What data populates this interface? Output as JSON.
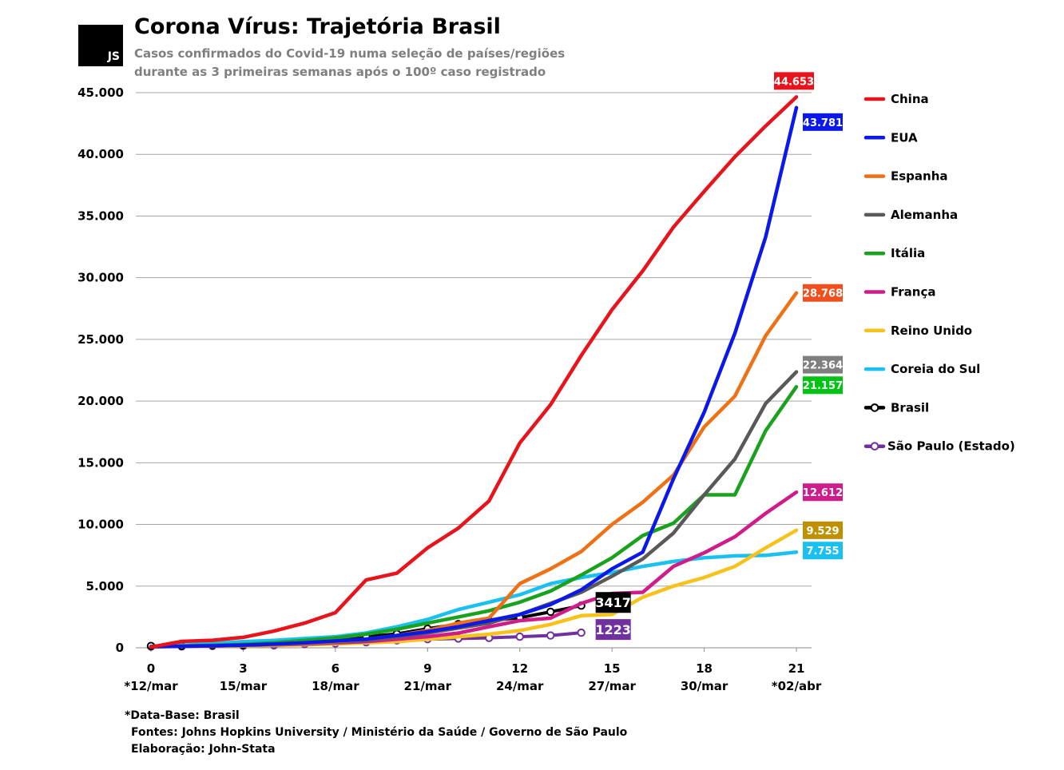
{
  "header": {
    "logo_text": "JS",
    "title": "Corona Vírus: Trajetória Brasil",
    "subtitle": "Casos confirmados do Covid-19 numa seleção de países/regiões durante as 3 primeiras semanas após o 100º caso registrado"
  },
  "footer": {
    "line1": "*Data-Base: Brasil",
    "line2": "Fontes: Johns Hopkins University / Ministério da Saúde / Governo de São Paulo",
    "line3": "Elaboração: John-Stata"
  },
  "chart_data": {
    "type": "line",
    "title": "Corona Vírus: Trajetória Brasil",
    "xlabel": "",
    "ylabel": "",
    "xlim": [
      0,
      21
    ],
    "ylim": [
      0,
      45000
    ],
    "grid": "horizontal",
    "legend_position": "right",
    "x_ticks": [
      {
        "x": 0,
        "day": "0",
        "date": "*12/mar"
      },
      {
        "x": 3,
        "day": "3",
        "date": "15/mar"
      },
      {
        "x": 6,
        "day": "6",
        "date": "18/mar"
      },
      {
        "x": 9,
        "day": "9",
        "date": "21/mar"
      },
      {
        "x": 12,
        "day": "12",
        "date": "24/mar"
      },
      {
        "x": 15,
        "day": "15",
        "date": "27/mar"
      },
      {
        "x": 18,
        "day": "18",
        "date": "30/mar"
      },
      {
        "x": 21,
        "day": "21",
        "date": "*02/abr"
      }
    ],
    "y_ticks": [
      {
        "value": 0,
        "label": "0"
      },
      {
        "value": 5000,
        "label": "5.000"
      },
      {
        "value": 10000,
        "label": "10.000"
      },
      {
        "value": 15000,
        "label": "15.000"
      },
      {
        "value": 20000,
        "label": "20.000"
      },
      {
        "value": 25000,
        "label": "25.000"
      },
      {
        "value": 30000,
        "label": "30.000"
      },
      {
        "value": 35000,
        "label": "35.000"
      },
      {
        "value": 40000,
        "label": "40.000"
      },
      {
        "value": 45000,
        "label": "45.000"
      }
    ],
    "series": [
      {
        "name": "China",
        "color": "#e8141c",
        "marker": "none",
        "end_label": "44.653",
        "label_color": "#e8141c",
        "values": [
          60,
          520,
          610,
          850,
          1350,
          2000,
          2850,
          5500,
          6050,
          8100,
          9700,
          11900,
          16600,
          19700,
          23700,
          27400,
          30550,
          34100,
          37000,
          39800,
          42300,
          44653
        ]
      },
      {
        "name": "EUA",
        "color": "#0a19ea",
        "marker": "none",
        "end_label": "43.781",
        "label_color": "#0a19ea",
        "values": [
          100,
          120,
          160,
          220,
          300,
          400,
          550,
          700,
          1000,
          1300,
          1700,
          2200,
          2700,
          3500,
          4700,
          6400,
          7750,
          13700,
          19100,
          25500,
          33300,
          43781
        ]
      },
      {
        "name": "Espanha",
        "color": "#ef7116",
        "marker": "none",
        "end_label": "28.768",
        "label_color": "#f24f1e",
        "values": [
          100,
          130,
          160,
          200,
          260,
          350,
          500,
          700,
          1000,
          1400,
          2000,
          2400,
          5200,
          6400,
          7800,
          10000,
          11800,
          14000,
          17900,
          20400,
          25300,
          28768
        ]
      },
      {
        "name": "Alemanha",
        "color": "#595959",
        "marker": "none",
        "end_label": "22.364",
        "label_color": "#7f7f7f",
        "values": [
          100,
          120,
          160,
          200,
          250,
          330,
          450,
          600,
          900,
          1200,
          1600,
          2000,
          2700,
          3600,
          4500,
          5800,
          7200,
          9300,
          12400,
          15300,
          19800,
          22364
        ]
      },
      {
        "name": "Itália",
        "color": "#1aa21f",
        "marker": "none",
        "end_label": "21.157",
        "label_color": "#00c316",
        "values": [
          100,
          150,
          200,
          280,
          400,
          600,
          800,
          1100,
          1500,
          2000,
          2500,
          3000,
          3700,
          4600,
          5900,
          7300,
          9100,
          10100,
          12400,
          12400,
          17600,
          21157
        ]
      },
      {
        "name": "França",
        "color": "#d01c8b",
        "marker": "none",
        "end_label": "12.612",
        "label_color": "#d01c8b",
        "values": [
          100,
          120,
          150,
          200,
          250,
          300,
          400,
          500,
          700,
          900,
          1200,
          1700,
          2200,
          2400,
          3600,
          4400,
          4500,
          6600,
          7700,
          9000,
          10900,
          12612
        ]
      },
      {
        "name": "Reino Unido",
        "color": "#f8c21c",
        "marker": "none",
        "end_label": "9.529",
        "label_color": "#bf9000",
        "values": [
          100,
          110,
          130,
          160,
          190,
          250,
          320,
          400,
          500,
          700,
          900,
          1100,
          1400,
          1900,
          2600,
          2700,
          4100,
          5000,
          5700,
          6600,
          8100,
          9529
        ]
      },
      {
        "name": "Coreia do Sul",
        "color": "#1ac0f0",
        "marker": "none",
        "end_label": "7.755",
        "label_color": "#1ac0f0",
        "values": [
          100,
          200,
          350,
          500,
          600,
          750,
          900,
          1200,
          1700,
          2300,
          3100,
          3700,
          4300,
          5200,
          5700,
          6100,
          6600,
          7000,
          7300,
          7450,
          7500,
          7755
        ]
      },
      {
        "name": "Brasil",
        "color": "#000000",
        "marker": "open-circle",
        "end_label": "3417",
        "label_color": "#000000",
        "values": [
          151,
          151,
          200,
          234,
          346,
          529,
          640,
          904,
          1128,
          1546,
          1924,
          2201,
          2433,
          2915,
          3417
        ]
      },
      {
        "name": "São Paulo (Estado)",
        "color": "#7030a0",
        "marker": "open-circle",
        "end_label": "1223",
        "label_color": "#7030a0",
        "values": [
          100,
          110,
          150,
          160,
          200,
          300,
          350,
          450,
          600,
          700,
          750,
          800,
          900,
          1000,
          1223
        ]
      }
    ]
  }
}
